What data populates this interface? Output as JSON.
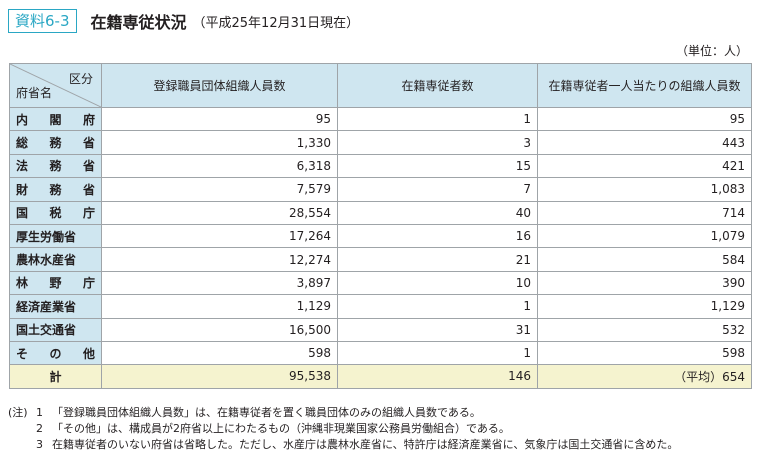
{
  "header": {
    "badge": "資料6-3",
    "title": "在籍専従状況",
    "subtitle": "（平成25年12月31日現在）"
  },
  "unit": "（単位：人）",
  "table": {
    "corner_top": "区分",
    "corner_bottom": "府省名",
    "columns": [
      "登録職員団体組織人員数",
      "在籍専従者数",
      "在籍専従者一人当たりの組織人員数"
    ],
    "rows": [
      {
        "ministry": [
          "内",
          "閣",
          "府"
        ],
        "members": "95",
        "staff": "1",
        "per": "95"
      },
      {
        "ministry": [
          "総",
          "務",
          "省"
        ],
        "members": "1,330",
        "staff": "3",
        "per": "443"
      },
      {
        "ministry": [
          "法",
          "務",
          "省"
        ],
        "members": "6,318",
        "staff": "15",
        "per": "421"
      },
      {
        "ministry": [
          "財",
          "務",
          "省"
        ],
        "members": "7,579",
        "staff": "7",
        "per": "1,083"
      },
      {
        "ministry": [
          "国",
          "税",
          "庁"
        ],
        "members": "28,554",
        "staff": "40",
        "per": "714"
      },
      {
        "ministry": [
          "厚生労働省"
        ],
        "members": "17,264",
        "staff": "16",
        "per": "1,079"
      },
      {
        "ministry": [
          "農林水産省"
        ],
        "members": "12,274",
        "staff": "21",
        "per": "584"
      },
      {
        "ministry": [
          "林",
          "野",
          "庁"
        ],
        "members": "3,897",
        "staff": "10",
        "per": "390"
      },
      {
        "ministry": [
          "経済産業省"
        ],
        "members": "1,129",
        "staff": "1",
        "per": "1,129"
      },
      {
        "ministry": [
          "国土交通省"
        ],
        "members": "16,500",
        "staff": "31",
        "per": "532"
      },
      {
        "ministry": [
          "そ",
          "の",
          "他"
        ],
        "members": "598",
        "staff": "1",
        "per": "598"
      }
    ],
    "total": {
      "label": "計",
      "members": "95,538",
      "staff": "146",
      "per": "（平均）654"
    }
  },
  "notes": {
    "prefix": "(注)",
    "items": [
      {
        "num": "1",
        "text": "「登録職員団体組織人員数」は、在籍専従者を置く職員団体のみの組織人員数である。"
      },
      {
        "num": "2",
        "text": "「その他」は、構成員が2府省以上にわたるもの（沖縄非現業国家公務員労働組合）である。"
      },
      {
        "num": "3",
        "text": "在籍専従者のいない府省は省略した。ただし、水産庁は農林水産省に、特許庁は経済産業省に、気象庁は国土交通省に含めた。"
      }
    ]
  }
}
